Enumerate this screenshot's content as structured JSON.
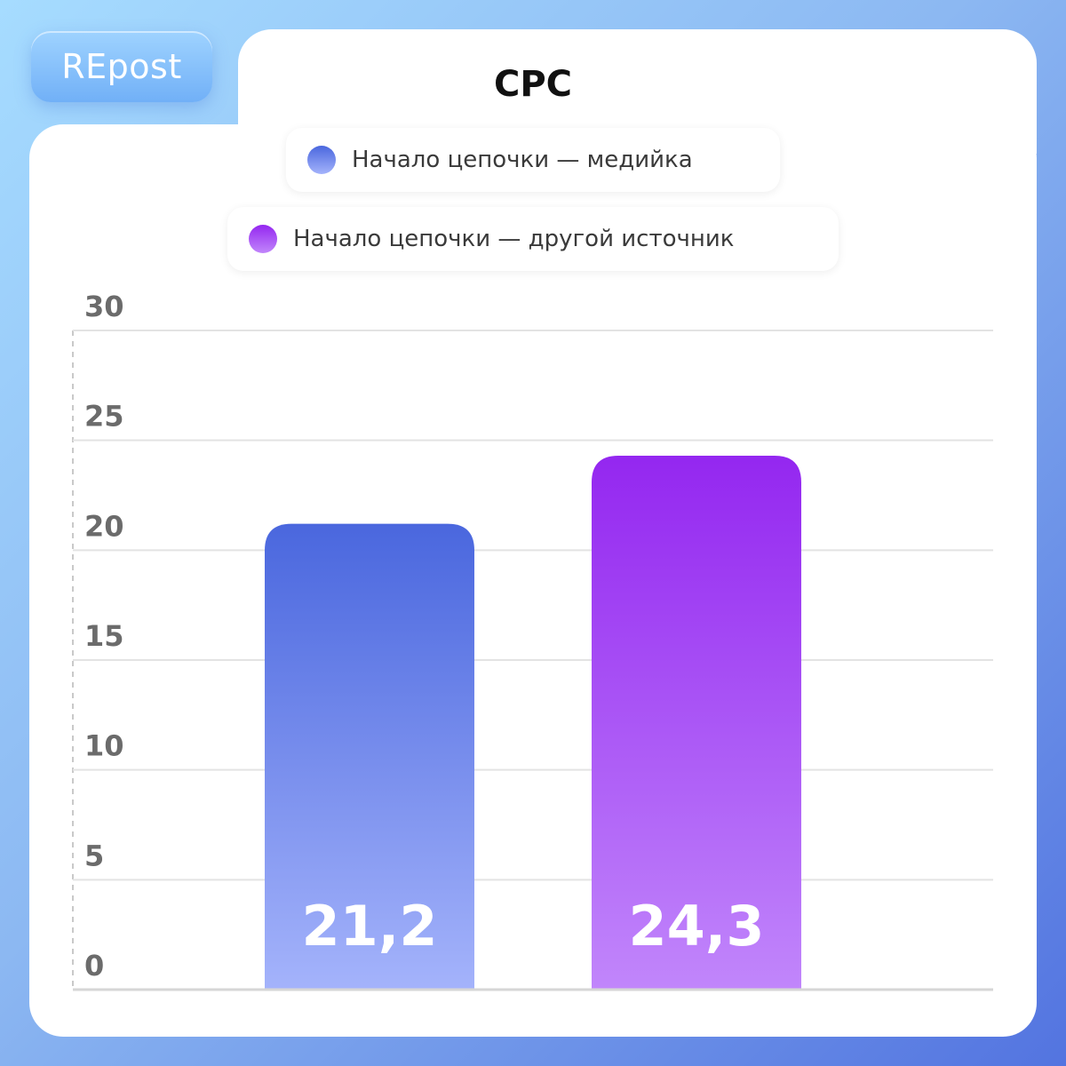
{
  "brand": {
    "logo_text": "REpost"
  },
  "chart_data": {
    "type": "bar",
    "title": "CPC",
    "xlabel": "",
    "ylabel": "",
    "ylim": [
      0,
      30
    ],
    "yticks": [
      0,
      5,
      10,
      15,
      20,
      25,
      30
    ],
    "grid": true,
    "legend_position": "top-center",
    "categories": [
      "",
      ""
    ],
    "series": [
      {
        "name": "Начало цепочки — медийка",
        "values": [
          21.2,
          null
        ],
        "label": "21,2",
        "color_top": "#4a67de",
        "color_bottom": "#a4b3fb"
      },
      {
        "name": "Начало цепочки — другой источник",
        "values": [
          null,
          24.3
        ],
        "label": "24,3",
        "color_top": "#9427f0",
        "color_bottom": "#c186fb"
      }
    ]
  }
}
